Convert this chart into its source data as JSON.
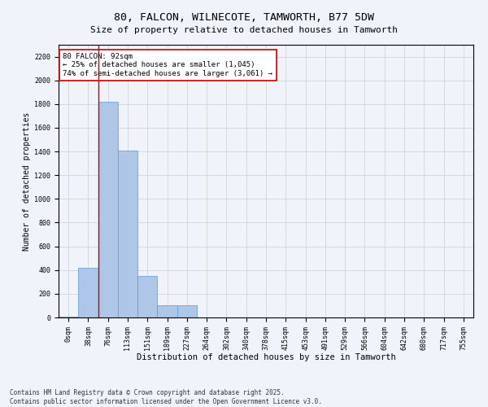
{
  "title": "80, FALCON, WILNECOTE, TAMWORTH, B77 5DW",
  "subtitle": "Size of property relative to detached houses in Tamworth",
  "xlabel": "Distribution of detached houses by size in Tamworth",
  "ylabel": "Number of detached properties",
  "categories": [
    "0sqm",
    "38sqm",
    "76sqm",
    "113sqm",
    "151sqm",
    "189sqm",
    "227sqm",
    "264sqm",
    "302sqm",
    "340sqm",
    "378sqm",
    "415sqm",
    "453sqm",
    "491sqm",
    "529sqm",
    "566sqm",
    "604sqm",
    "642sqm",
    "680sqm",
    "717sqm",
    "755sqm"
  ],
  "values": [
    10,
    420,
    1820,
    1410,
    350,
    100,
    100,
    0,
    0,
    0,
    0,
    0,
    0,
    0,
    0,
    0,
    0,
    0,
    0,
    0,
    0
  ],
  "bar_color": "#aec6e8",
  "bar_edge_color": "#5b9bd5",
  "vline_x": 1.52,
  "vline_color": "#cc0000",
  "annotation_text": "80 FALCON: 92sqm\n← 25% of detached houses are smaller (1,045)\n74% of semi-detached houses are larger (3,061) →",
  "annotation_box_color": "#ffffff",
  "annotation_edge_color": "#cc0000",
  "ylim": [
    0,
    2300
  ],
  "yticks": [
    0,
    200,
    400,
    600,
    800,
    1000,
    1200,
    1400,
    1600,
    1800,
    2000,
    2200
  ],
  "footnote": "Contains HM Land Registry data © Crown copyright and database right 2025.\nContains public sector information licensed under the Open Government Licence v3.0.",
  "title_fontsize": 9.5,
  "subtitle_fontsize": 8,
  "xlabel_fontsize": 7.5,
  "ylabel_fontsize": 7,
  "tick_fontsize": 6,
  "annotation_fontsize": 6.5,
  "footnote_fontsize": 5.5,
  "bg_color": "#f0f4fa"
}
